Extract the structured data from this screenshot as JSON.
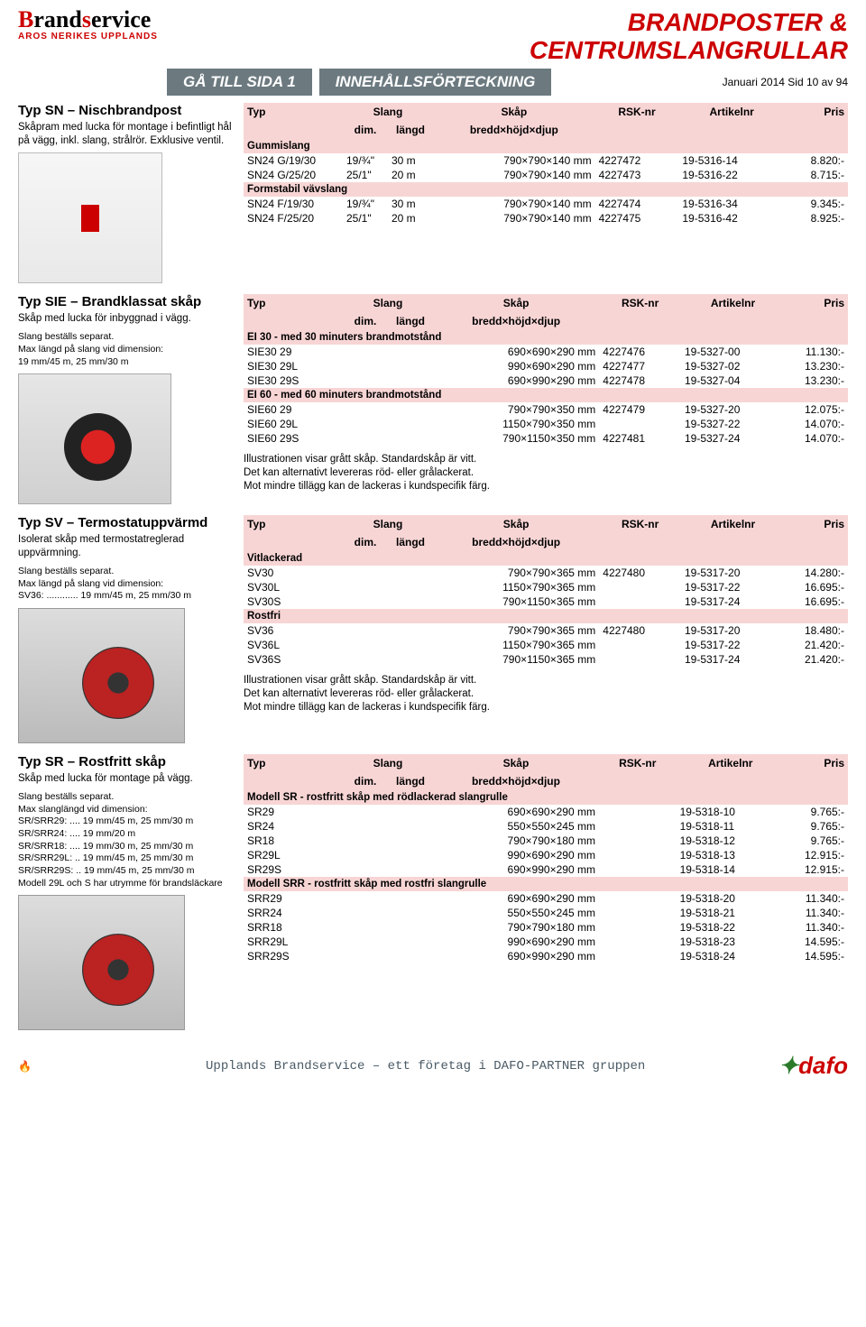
{
  "header": {
    "maintitle_line1": "BRANDPOSTER &",
    "maintitle_line2": "CENTRUMSLANGRULLAR",
    "logo_main": "Brandservice",
    "logo_sub": "AROS NERIKES UPPLANDS",
    "nav_btn1": "GÅ TILL SIDA 1",
    "nav_btn2": "INNEHÅLLSFÖRTECKNING",
    "date_page": "Januari  2014 Sid 10 av 94"
  },
  "table_header": {
    "typ": "Typ",
    "slang": "Slang",
    "dim": "dim.",
    "langd": "längd",
    "skap": "Skåp",
    "bredd": "bredd×höjd×djup",
    "rsk": "RSK-nr",
    "artikelnr": "Artikelnr",
    "pris": "Pris"
  },
  "sections": [
    {
      "title": "Typ SN – Nischbrandpost",
      "desc": "Skåpram med lucka för montage i befintligt hål på vägg, inkl. slang, strålrör. Exklusive ventil.",
      "img": "cabinet",
      "groups": [
        {
          "sub": "Gummislang",
          "rows": [
            {
              "typ": "SN24 G/19/30",
              "dim": "19/¾\"",
              "langd": "30 m",
              "skap": "790×790×140 mm",
              "rsk": "4227472",
              "art": "19-5316-14",
              "pris": "8.820:-"
            },
            {
              "typ": "SN24 G/25/20",
              "dim": "25/1\"",
              "langd": "20 m",
              "skap": "790×790×140 mm",
              "rsk": "4227473",
              "art": "19-5316-22",
              "pris": "8.715:-"
            }
          ]
        },
        {
          "sub": "Formstabil vävslang",
          "rows": [
            {
              "typ": "SN24 F/19/30",
              "dim": "19/¾\"",
              "langd": "30 m",
              "skap": "790×790×140 mm",
              "rsk": "4227474",
              "art": "19-5316-34",
              "pris": "9.345:-"
            },
            {
              "typ": "SN24 F/25/20",
              "dim": "25/1\"",
              "langd": "20 m",
              "skap": "790×790×140 mm",
              "rsk": "4227475",
              "art": "19-5316-42",
              "pris": "8.925:-"
            }
          ]
        }
      ]
    },
    {
      "title": "Typ SIE – Brandklassat skåp",
      "desc": "Skåp med lucka för inbyggnad i vägg.",
      "desc2": "Slang beställs separat.\nMax längd på slang vid dimension:\n19 mm/45 m, 25 mm/30 m",
      "img": "reel",
      "note": "Illustrationen visar grått skåp. Standardskåp är vitt.\nDet kan alternativt levereras röd- eller grålackerat.\nMot mindre tillägg kan de lackeras i kundspecifik färg.",
      "groups": [
        {
          "sub": "EI 30 - med 30 minuters brandmotstånd",
          "rows": [
            {
              "typ": "SIE30 29",
              "dim": "",
              "langd": "",
              "skap": "690×690×290 mm",
              "rsk": "4227476",
              "art": "19-5327-00",
              "pris": "11.130:-"
            },
            {
              "typ": "SIE30 29L",
              "dim": "",
              "langd": "",
              "skap": "990×690×290 mm",
              "rsk": "4227477",
              "art": "19-5327-02",
              "pris": "13.230:-"
            },
            {
              "typ": "SIE30 29S",
              "dim": "",
              "langd": "",
              "skap": "690×990×290 mm",
              "rsk": "4227478",
              "art": "19-5327-04",
              "pris": "13.230:-"
            }
          ]
        },
        {
          "sub": "EI 60 - med 60 minuters brandmotstånd",
          "rows": [
            {
              "typ": "SIE60 29",
              "dim": "",
              "langd": "",
              "skap": "790×790×350 mm",
              "rsk": "4227479",
              "art": "19-5327-20",
              "pris": "12.075:-"
            },
            {
              "typ": "SIE60 29L",
              "dim": "",
              "langd": "",
              "skap": "1150×790×350 mm",
              "rsk": "",
              "art": "19-5327-22",
              "pris": "14.070:-"
            },
            {
              "typ": "SIE60 29S",
              "dim": "",
              "langd": "",
              "skap": "790×1150×350 mm",
              "rsk": "4227481",
              "art": "19-5327-24",
              "pris": "14.070:-"
            }
          ]
        }
      ]
    },
    {
      "title": "Typ SV – Termostatuppvärmd",
      "desc": "Isolerat skåp med termostatreglerad uppvärmning.",
      "desc2": "Slang beställs separat.\nMax längd på slang vid dimension:\nSV36: ............ 19 mm/45 m, 25 mm/30 m",
      "img": "steel",
      "note": "Illustrationen visar grått skåp. Standardskåp är vitt.\nDet kan alternativt levereras röd- eller grålackerat.\nMot mindre tillägg kan de lackeras i kundspecifik färg.",
      "groups": [
        {
          "sub": "Vitlackerad",
          "rows": [
            {
              "typ": "SV30",
              "dim": "",
              "langd": "",
              "skap": "790×790×365 mm",
              "rsk": "4227480",
              "art": "19-5317-20",
              "pris": "14.280:-"
            },
            {
              "typ": "SV30L",
              "dim": "",
              "langd": "",
              "skap": "1150×790×365 mm",
              "rsk": "",
              "art": "19-5317-22",
              "pris": "16.695:-"
            },
            {
              "typ": "SV30S",
              "dim": "",
              "langd": "",
              "skap": "790×1150×365 mm",
              "rsk": "",
              "art": "19-5317-24",
              "pris": "16.695:-"
            }
          ]
        },
        {
          "sub": "Rostfri",
          "rows": [
            {
              "typ": "SV36",
              "dim": "",
              "langd": "",
              "skap": "790×790×365 mm",
              "rsk": "4227480",
              "art": "19-5317-20",
              "pris": "18.480:-"
            },
            {
              "typ": "SV36L",
              "dim": "",
              "langd": "",
              "skap": "1150×790×365 mm",
              "rsk": "",
              "art": "19-5317-22",
              "pris": "21.420:-"
            },
            {
              "typ": "SV36S",
              "dim": "",
              "langd": "",
              "skap": "790×1150×365 mm",
              "rsk": "",
              "art": "19-5317-24",
              "pris": "21.420:-"
            }
          ]
        }
      ]
    },
    {
      "title": "Typ SR – Rostfritt skåp",
      "desc": "Skåp med lucka för montage på vägg.",
      "desc2": "Slang beställs separat.\nMax slanglängd vid dimension:\nSR/SRR29: .... 19 mm/45 m, 25 mm/30 m\nSR/SRR24: .... 19 mm/20 m\nSR/SRR18: .... 19 mm/30 m, 25 mm/30 m\nSR/SRR29L: .. 19 mm/45 m, 25 mm/30 m\nSR/SRR29S: .. 19 mm/45 m, 25 mm/30 m\nModell 29L och S har utrymme för brandsläckare",
      "img": "steel",
      "groups": [
        {
          "sub": "Modell SR - rostfritt skåp med rödlackerad slangrulle",
          "rows": [
            {
              "typ": "SR29",
              "dim": "",
              "langd": "",
              "skap": "690×690×290 mm",
              "rsk": "",
              "art": "19-5318-10",
              "pris": "9.765:-"
            },
            {
              "typ": "SR24",
              "dim": "",
              "langd": "",
              "skap": "550×550×245 mm",
              "rsk": "",
              "art": "19-5318-11",
              "pris": "9.765:-"
            },
            {
              "typ": "SR18",
              "dim": "",
              "langd": "",
              "skap": "790×790×180 mm",
              "rsk": "",
              "art": "19-5318-12",
              "pris": "9.765:-"
            },
            {
              "typ": "SR29L",
              "dim": "",
              "langd": "",
              "skap": "990×690×290 mm",
              "rsk": "",
              "art": "19-5318-13",
              "pris": "12.915:-"
            },
            {
              "typ": "SR29S",
              "dim": "",
              "langd": "",
              "skap": "690×990×290 mm",
              "rsk": "",
              "art": "19-5318-14",
              "pris": "12.915:-"
            }
          ]
        },
        {
          "sub": "Modell SRR - rostfritt skåp med rostfri slangrulle",
          "rows": [
            {
              "typ": "SRR29",
              "dim": "",
              "langd": "",
              "skap": "690×690×290 mm",
              "rsk": "",
              "art": "19-5318-20",
              "pris": "11.340:-"
            },
            {
              "typ": "SRR24",
              "dim": "",
              "langd": "",
              "skap": "550×550×245 mm",
              "rsk": "",
              "art": "19-5318-21",
              "pris": "11.340:-"
            },
            {
              "typ": "SRR18",
              "dim": "",
              "langd": "",
              "skap": "790×790×180 mm",
              "rsk": "",
              "art": "19-5318-22",
              "pris": "11.340:-"
            },
            {
              "typ": "SRR29L",
              "dim": "",
              "langd": "",
              "skap": "990×690×290 mm",
              "rsk": "",
              "art": "19-5318-23",
              "pris": "14.595:-"
            },
            {
              "typ": "SRR29S",
              "dim": "",
              "langd": "",
              "skap": "690×990×290 mm",
              "rsk": "",
              "art": "19-5318-24",
              "pris": "14.595:-"
            }
          ]
        }
      ]
    }
  ],
  "footer": {
    "line": "Upplands Brandservice – ett företag i DAFO-PARTNER gruppen",
    "dafo": "dafo"
  }
}
